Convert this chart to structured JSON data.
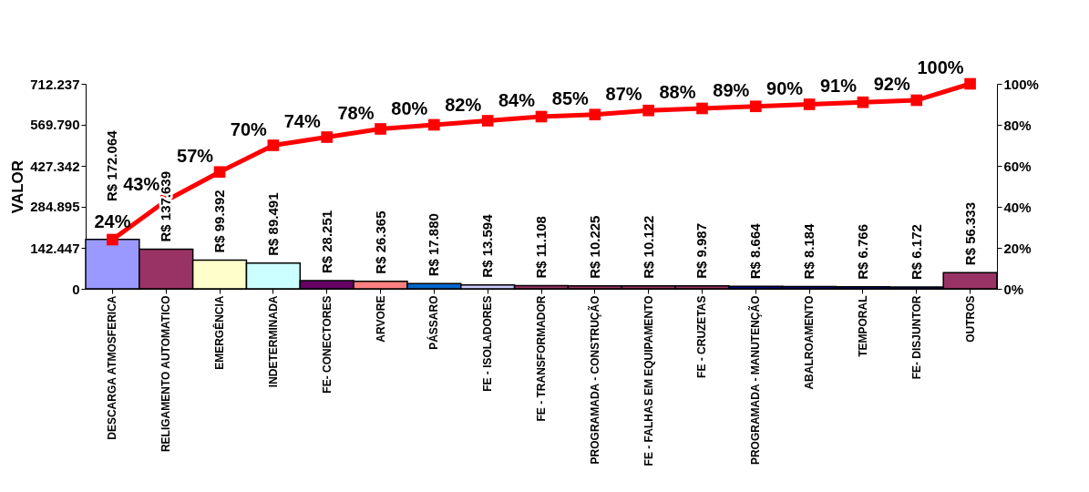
{
  "chart_data": {
    "type": "bar",
    "ylabel": "VALOR",
    "categories": [
      "DESCARGA ATMOSFERICA",
      "RELIGAMENTO AUTOMATICO",
      "EMERGÊNCIA",
      "INDETERMINADA",
      "FE- CONECTORES",
      "ARVORE",
      "PÁSSARO",
      "FE - ISOLADORES",
      "FE - TRANSFORMADOR",
      "PROGRAMADA - CONSTRUÇÃO",
      "FE - FALHAS EM EQUIPAMENTO",
      "FE - CRUZETAS",
      "PROGRAMADA - MANUTENÇÃO",
      "ABALROAMENTO",
      "TEMPORAL",
      "FE- DISJUNTOR",
      "OUTROS"
    ],
    "series": [
      {
        "colors": [
          "#9999ff",
          "#993366",
          "#ffffcc",
          "#ccffff",
          "#660066",
          "#ff8080",
          "#0066cc",
          "#ccccff",
          "#993366",
          "#993366",
          "#993366",
          "#993366",
          "#000080",
          "#000080",
          "#000080",
          "#000080",
          "#993366"
        ],
        "values": [
          172064,
          137639,
          99392,
          89491,
          28251,
          26365,
          17880,
          13594,
          11108,
          10225,
          10122,
          9987,
          8664,
          8184,
          6766,
          6172,
          56333
        ],
        "value_labels": [
          "R$ 172.064",
          "R$ 137.639",
          "R$ 99.392",
          "R$ 89.491",
          "R$ 28.251",
          "R$ 26.365",
          "R$ 17.880",
          "R$ 13.594",
          "R$ 11.108",
          "R$ 10.225",
          "R$ 10.122",
          "R$ 9.987",
          "R$ 8.664",
          "R$ 8.184",
          "R$ 6.766",
          "R$ 6.172",
          "R$ 56.333"
        ]
      },
      {
        "type": "line",
        "axis": "y2",
        "color": "#ff0000",
        "values": [
          24,
          43,
          57,
          70,
          74,
          78,
          80,
          82,
          84,
          85,
          87,
          88,
          89,
          90,
          91,
          92,
          100
        ],
        "value_labels": [
          "24%",
          "43%",
          "57%",
          "70%",
          "74%",
          "78%",
          "80%",
          "82%",
          "84%",
          "85%",
          "87%",
          "88%",
          "89%",
          "90%",
          "91%",
          "92%",
          "100%"
        ]
      }
    ],
    "ylim": [
      0,
      712237
    ],
    "yticks": [
      0,
      {
        "value": 142447,
        "label": "142.447"
      },
      {
        "value": 284895,
        "label": "284.895"
      },
      {
        "value": 427342,
        "label": "427.342"
      },
      {
        "value": 569790,
        "label": "569.790"
      },
      {
        "value": 712237,
        "label": "712.237"
      }
    ],
    "y2lim": [
      0,
      100
    ],
    "y2ticks": [
      {
        "value": 0,
        "label": "0%"
      },
      {
        "value": 20,
        "label": "20%"
      },
      {
        "value": 40,
        "label": "40%"
      },
      {
        "value": 60,
        "label": "60%"
      },
      {
        "value": 80,
        "label": "80%"
      },
      {
        "value": 100,
        "label": "100%"
      }
    ],
    "grid": false,
    "marker": "square",
    "line_style": "solid"
  }
}
